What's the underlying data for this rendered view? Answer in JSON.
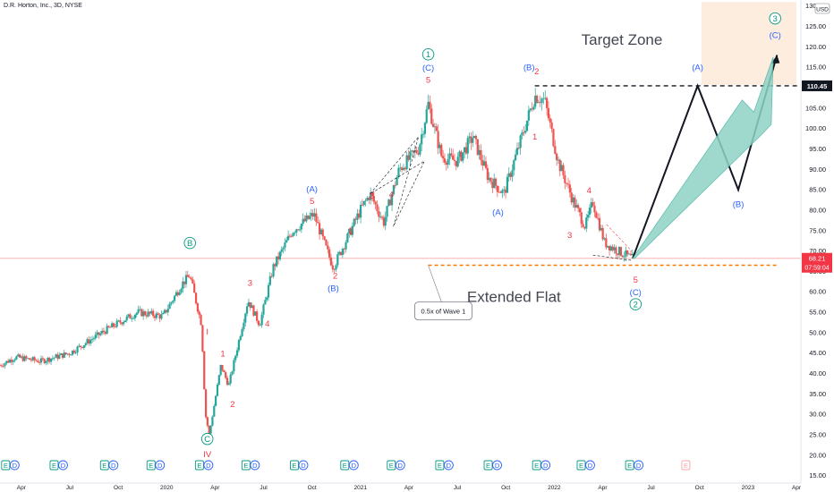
{
  "header": {
    "title": "D.R. Horton, Inc., 3D, NYSE"
  },
  "price_axis": {
    "currency": "USD",
    "ticks": [
      15,
      20,
      25,
      30,
      35,
      40,
      45,
      50,
      55,
      60,
      65,
      70,
      75,
      80,
      85,
      90,
      95,
      100,
      105,
      110,
      115,
      120,
      125,
      130
    ],
    "range": [
      13,
      131
    ]
  },
  "time_axis": {
    "labels": [
      {
        "t": 0.25,
        "label": "Apr"
      },
      {
        "t": 0.5,
        "label": "Jul"
      },
      {
        "t": 0.75,
        "label": "Oct"
      },
      {
        "t": 1.0,
        "label": "2020"
      },
      {
        "t": 1.25,
        "label": "Apr"
      },
      {
        "t": 1.5,
        "label": "Jul"
      },
      {
        "t": 1.75,
        "label": "Oct"
      },
      {
        "t": 2.0,
        "label": "2021"
      },
      {
        "t": 2.25,
        "label": "Apr"
      },
      {
        "t": 2.5,
        "label": "Jul"
      },
      {
        "t": 2.75,
        "label": "Oct"
      },
      {
        "t": 3.0,
        "label": "2022"
      },
      {
        "t": 3.25,
        "label": "Apr"
      },
      {
        "t": 3.5,
        "label": "Jul"
      },
      {
        "t": 3.75,
        "label": "Oct"
      },
      {
        "t": 4.0,
        "label": "2023"
      },
      {
        "t": 4.25,
        "label": "Apr"
      }
    ],
    "range": [
      0.14,
      4.25
    ]
  },
  "badges": {
    "price_label": "110.45",
    "current_price": "68.21",
    "countdown": "07:59:04"
  },
  "annotations": {
    "target_zone": "Target Zone",
    "extended_flat": "Extended Flat",
    "callout": "0.5x of Wave 1"
  },
  "colors": {
    "up": "#26a69a",
    "down": "#ef5350",
    "wave_red": "#f23645",
    "wave_blue": "#2962ff",
    "wave_green": "#089981",
    "target_fill": "#fdebdc",
    "arrow_fill": "#8fd3c6",
    "orange_dash": "#f57c00"
  },
  "events": [
    {
      "t": 0.19,
      "letters": [
        "E",
        "D"
      ]
    },
    {
      "t": 0.44,
      "letters": [
        "E",
        "D"
      ]
    },
    {
      "t": 0.7,
      "letters": [
        "E",
        "D"
      ]
    },
    {
      "t": 0.94,
      "letters": [
        "E",
        "D"
      ]
    },
    {
      "t": 1.19,
      "letters": [
        "E",
        "D"
      ]
    },
    {
      "t": 1.43,
      "letters": [
        "E",
        "D"
      ]
    },
    {
      "t": 1.68,
      "letters": [
        "E",
        "D"
      ]
    },
    {
      "t": 1.94,
      "letters": [
        "E",
        "D"
      ]
    },
    {
      "t": 2.18,
      "letters": [
        "E",
        "D"
      ]
    },
    {
      "t": 2.43,
      "letters": [
        "E",
        "D"
      ]
    },
    {
      "t": 2.68,
      "letters": [
        "E",
        "D"
      ]
    },
    {
      "t": 2.93,
      "letters": [
        "E",
        "D"
      ]
    },
    {
      "t": 3.16,
      "letters": [
        "E",
        "D"
      ]
    },
    {
      "t": 3.41,
      "letters": [
        "E",
        "D"
      ]
    },
    {
      "t": 3.7,
      "letters": [
        "E"
      ],
      "future": true
    }
  ],
  "wave_labels": [
    {
      "t": 1.21,
      "p": 19.5,
      "text": "IV",
      "color": "red"
    },
    {
      "t": 1.21,
      "p": 23.2,
      "text": "C",
      "color": "green",
      "circle": true
    },
    {
      "t": 1.21,
      "p": 49.5,
      "text": "I",
      "color": "red"
    },
    {
      "t": 1.29,
      "p": 44.2,
      "text": "1",
      "color": "red"
    },
    {
      "t": 1.34,
      "p": 31.8,
      "text": "2",
      "color": "red"
    },
    {
      "t": 1.43,
      "p": 61.5,
      "text": "3",
      "color": "red"
    },
    {
      "t": 1.52,
      "p": 51.5,
      "text": "4",
      "color": "red"
    },
    {
      "t": 1.12,
      "p": 71.2,
      "text": "B",
      "color": "green",
      "circle": true
    },
    {
      "t": 1.75,
      "p": 84.5,
      "text": "(A)",
      "color": "blue"
    },
    {
      "t": 1.75,
      "p": 81.5,
      "text": "5",
      "color": "red"
    },
    {
      "t": 1.87,
      "p": 63.2,
      "text": "2",
      "color": "red"
    },
    {
      "t": 1.86,
      "p": 60.2,
      "text": "(B)",
      "color": "blue"
    },
    {
      "t": 1.95,
      "p": 74.3,
      "text": "1",
      "color": "red"
    },
    {
      "t": 2.06,
      "p": 82.8,
      "text": "3",
      "color": "red"
    },
    {
      "t": 2.16,
      "p": 83.2,
      "text": "4",
      "color": "red"
    },
    {
      "t": 2.35,
      "p": 117.4,
      "text": "1",
      "color": "green",
      "circle": true
    },
    {
      "t": 2.35,
      "p": 114.2,
      "text": "(C)",
      "color": "blue"
    },
    {
      "t": 2.35,
      "p": 111.2,
      "text": "5",
      "color": "red"
    },
    {
      "t": 2.87,
      "p": 114.3,
      "text": "(B)",
      "color": "blue"
    },
    {
      "t": 2.91,
      "p": 113.3,
      "text": "2",
      "color": "red"
    },
    {
      "t": 2.9,
      "p": 97.3,
      "text": "1",
      "color": "red"
    },
    {
      "t": 2.71,
      "p": 78.8,
      "text": "(A)",
      "color": "blue"
    },
    {
      "t": 3.08,
      "p": 73.2,
      "text": "3",
      "color": "red"
    },
    {
      "t": 3.18,
      "p": 84.2,
      "text": "4",
      "color": "red"
    },
    {
      "t": 3.42,
      "p": 62.2,
      "text": "5",
      "color": "red"
    },
    {
      "t": 3.42,
      "p": 59.2,
      "text": "(C)",
      "color": "blue"
    },
    {
      "t": 3.42,
      "p": 56.2,
      "text": "2",
      "color": "green",
      "circle": true
    },
    {
      "t": 3.74,
      "p": 114.3,
      "text": "(A)",
      "color": "blue"
    },
    {
      "t": 3.95,
      "p": 80.8,
      "text": "(B)",
      "color": "blue"
    },
    {
      "t": 4.14,
      "p": 126.2,
      "text": "3",
      "color": "green",
      "circle": true
    },
    {
      "t": 4.14,
      "p": 122.2,
      "text": "(C)",
      "color": "blue"
    }
  ]
}
